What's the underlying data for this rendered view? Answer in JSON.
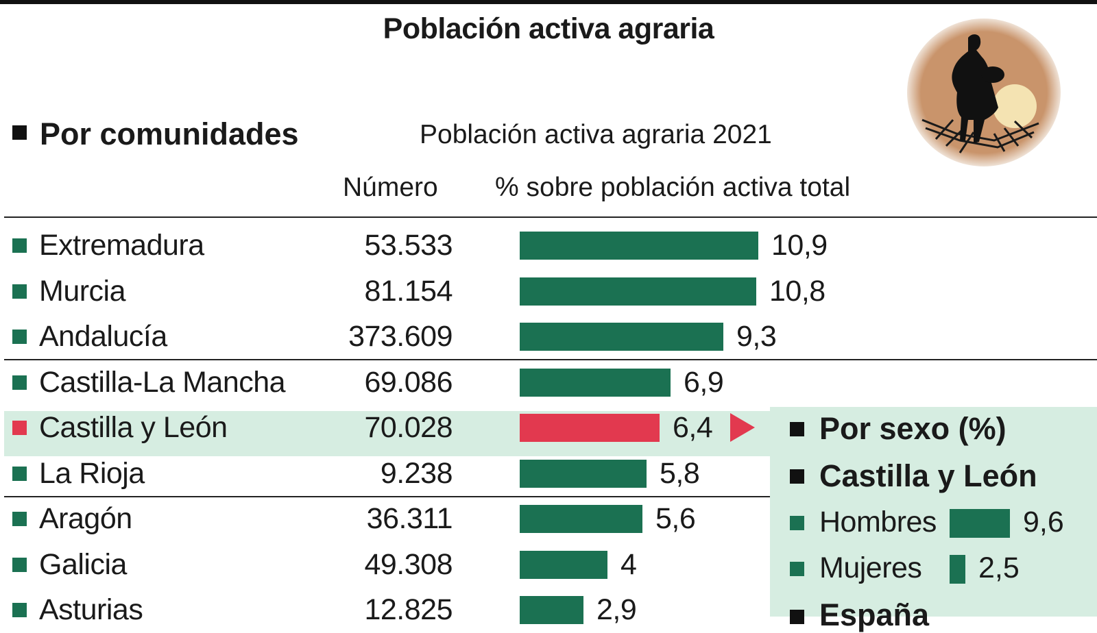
{
  "title": "Población activa agraria",
  "section_heading": "Por comunidades",
  "subtitle": "Población activa agraria 2021",
  "column_headers": {
    "number": "Número",
    "percent": "% sobre población activa total"
  },
  "colors": {
    "bar": "#1b7152",
    "highlight_bar": "#e2394f",
    "highlight_row": "#d6ede1",
    "panel_background": "#d6ede1",
    "illustration_disc": "#c9946b"
  },
  "side_panel": {
    "heading": "Por sexo (%)",
    "region": "Castilla y León",
    "items": [
      {
        "label": "Hombres",
        "value": 9.6,
        "value_label": "9,6"
      },
      {
        "label": "Mujeres",
        "value": 2.5,
        "value_label": "2,5"
      }
    ],
    "next_heading": "España"
  },
  "illustration": {
    "icon": "farmer-silhouette-icon"
  },
  "chart_data": {
    "type": "bar",
    "orientation": "horizontal",
    "title": "Población activa agraria 2021",
    "categories": [
      "Extremadura",
      "Murcia",
      "Andalucía",
      "Castilla-La Mancha",
      "Castilla y León",
      "La Rioja",
      "Aragón",
      "Galicia",
      "Asturias"
    ],
    "numbers": [
      "53.533",
      "81.154",
      "373.609",
      "69.086",
      "70.028",
      "9.238",
      "36.311",
      "49.308",
      "12.825"
    ],
    "values": [
      10.9,
      10.8,
      9.3,
      6.9,
      6.4,
      5.8,
      5.6,
      4.0,
      2.9
    ],
    "value_labels": [
      "10,9",
      "10,8",
      "9,3",
      "6,9",
      "6,4",
      "5,8",
      "5,6",
      "4",
      "2,9"
    ],
    "highlight_index": 4,
    "xlim": [
      0,
      10.9
    ],
    "grid": false,
    "legend": "none"
  }
}
